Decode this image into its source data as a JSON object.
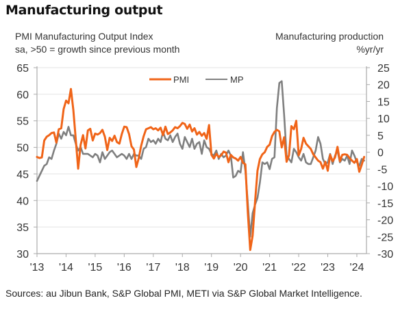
{
  "header": {
    "title": "Manufacturing output",
    "left_axis_title_1": "PMI Manufacturing Output Index",
    "left_axis_title_2": "sa, >50 = growth since previous month",
    "right_axis_title_1": "Manufacturing production",
    "right_axis_title_2": "%yr/yr"
  },
  "footer": {
    "source": "Sources: au Jibun Bank, S&P Global PMI, METI via S&P Global Market Intelligence."
  },
  "chart_data": {
    "type": "line",
    "title": "Manufacturing output",
    "x_start": "2013-01",
    "frequency": "monthly",
    "xtick_labels": [
      "'13",
      "'14",
      "'15",
      "'16",
      "'17",
      "'18",
      "'19",
      "'20",
      "'21",
      "'22",
      "'23",
      "'24"
    ],
    "left_axis": {
      "label": "PMI Manufacturing Output Index, sa, >50 = growth since previous month",
      "ylim": [
        30,
        65
      ],
      "ticks": [
        30,
        35,
        40,
        45,
        50,
        55,
        60,
        65
      ]
    },
    "right_axis": {
      "label": "Manufacturing production, %yr/yr",
      "ylim": [
        -30,
        25
      ],
      "ticks": [
        -30,
        -25,
        -20,
        -15,
        -10,
        -5,
        0,
        5,
        10,
        15,
        20,
        25
      ]
    },
    "grid": true,
    "legend": {
      "position": "top-center",
      "entries": [
        "PMI",
        "MP"
      ]
    },
    "series": [
      {
        "name": "PMI",
        "axis": "left",
        "color": "#F06418",
        "values": [
          48.2,
          48.0,
          48.1,
          51.3,
          52.0,
          52.3,
          52.7,
          52.8,
          50.9,
          53.4,
          53.6,
          57.2,
          58.8,
          58.3,
          61.0,
          57.0,
          51.5,
          46.0,
          50.5,
          52.3,
          49.8,
          53.2,
          53.5,
          51.3,
          52.6,
          52.4,
          52.7,
          53.3,
          52.0,
          49.5,
          51.8,
          51.2,
          52.2,
          51.0,
          50.7,
          52.5,
          53.9,
          53.8,
          52.5,
          50.2,
          49.6,
          46.3,
          48.0,
          50.3,
          52.1,
          53.4,
          53.6,
          53.8,
          53.4,
          53.6,
          53.2,
          53.7,
          52.3,
          53.9,
          52.5,
          52.8,
          53.2,
          53.8,
          53.6,
          54.0,
          54.6,
          54.4,
          53.5,
          54.3,
          53.0,
          53.6,
          52.4,
          52.9,
          52.2,
          52.7,
          51.6,
          54.2,
          48.6,
          47.9,
          48.8,
          48.2,
          48.5,
          49.2,
          49.0,
          47.2,
          48.6,
          48.1,
          47.9,
          47.5,
          48.2,
          47.1,
          46.8,
          37.7,
          30.7,
          33.4,
          39.8,
          45.6,
          47.8,
          48.7,
          49.1,
          50.1,
          50.5,
          52.1,
          52.9,
          53.3,
          53.0,
          50.0,
          51.9,
          47.3,
          48.5,
          54.0,
          53.4,
          55.0,
          48.5,
          49.7,
          51.8,
          50.7,
          50.2,
          49.7,
          48.7,
          48.1,
          47.5,
          47.2,
          46.0,
          47.3,
          45.6,
          48.6,
          47.4,
          48.1,
          50.1,
          47.4,
          48.6,
          48.7,
          48.6,
          48.0,
          47.5,
          47.1,
          47.8,
          45.4,
          46.7,
          48.2
        ]
      },
      {
        "name": "MP",
        "axis": "right",
        "color": "#7F7F7F",
        "values": [
          -8.5,
          -7.0,
          -5.5,
          -4.0,
          -3.5,
          -1.5,
          -2.0,
          0.5,
          2.5,
          5.5,
          4.0,
          6.0,
          5.0,
          7.5,
          5.0,
          5.0,
          2.5,
          0.5,
          1.5,
          -0.5,
          -0.5,
          -0.5,
          -1.0,
          -1.5,
          -0.5,
          -1.0,
          -3.0,
          0.0,
          -2.0,
          -1.0,
          0.0,
          0.5,
          -0.5,
          -1.5,
          -1.0,
          -0.5,
          -1.0,
          -2.0,
          -0.5,
          -2.0,
          -0.5,
          -1.0,
          -1.0,
          -2.0,
          1.0,
          1.5,
          4.0,
          3.0,
          3.5,
          2.5,
          4.0,
          3.0,
          6.0,
          4.0,
          3.5,
          5.0,
          3.0,
          4.5,
          5.5,
          2.5,
          1.0,
          4.5,
          3.0,
          1.5,
          4.0,
          1.0,
          2.5,
          3.0,
          -0.5,
          3.5,
          1.5,
          1.0,
          -0.5,
          -1.0,
          0.5,
          -2.0,
          -0.5,
          -1.5,
          -1.0,
          0.5,
          -1.0,
          -7.5,
          -7.0,
          -5.5,
          -6.0,
          0.0,
          -5.5,
          -15.0,
          -25.0,
          -18.0,
          -15.5,
          -13.5,
          -9.0,
          -3.0,
          -3.5,
          -3.0,
          -5.0,
          -2.0,
          -1.5,
          13.0,
          20.5,
          21.0,
          11.0,
          -1.0,
          -2.0,
          -3.0,
          1.0,
          0.0,
          -1.5,
          -2.5,
          -0.5,
          -3.0,
          -3.5,
          -3.5,
          -1.5,
          0.5,
          4.5,
          2.5,
          -2.0,
          -3.5,
          -3.0,
          -0.5,
          -3.5,
          -1.0,
          0.5,
          -3.0,
          -2.0,
          -2.5,
          -1.0,
          -3.5,
          0.5,
          -1.0,
          -3.0,
          -4.0,
          -2.0,
          -2.5
        ]
      }
    ]
  }
}
